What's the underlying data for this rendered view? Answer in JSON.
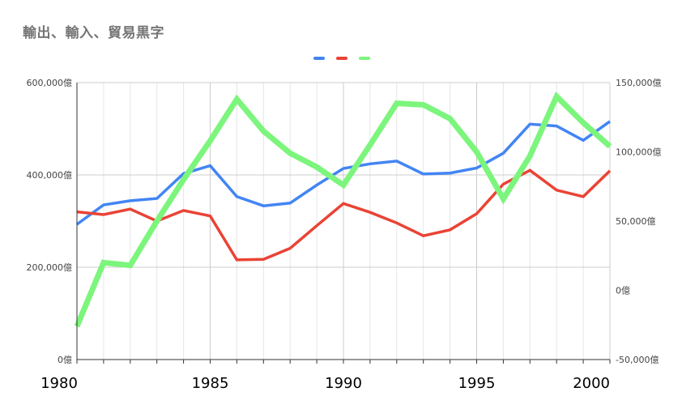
{
  "chart_data": {
    "type": "line",
    "title": "輸出、輸入、貿易黒字",
    "xlabel": "",
    "ylabel": "",
    "x": [
      1980,
      1981,
      1982,
      1983,
      1984,
      1985,
      1986,
      1987,
      1988,
      1989,
      1990,
      1991,
      1992,
      1993,
      1994,
      1995,
      1996,
      1997,
      1998,
      1999,
      2000
    ],
    "x_ticks": [
      "1980",
      "1985",
      "1990",
      "1995",
      "2000"
    ],
    "xlim": [
      1980,
      2000
    ],
    "ylim_left": [
      0,
      600000
    ],
    "ylim_right": [
      -50000,
      150000
    ],
    "y_ticks_left": [
      "0億",
      "200,000億",
      "400,000億",
      "600,000億"
    ],
    "y_ticks_right": [
      "-50,000億",
      "0億",
      "50,000億",
      "100,000億",
      "150,000億"
    ],
    "grid": true,
    "legend_position": "top",
    "series": [
      {
        "axis": "left",
        "color": "#4285F4",
        "values": [
          293000,
          335000,
          344000,
          349000,
          403000,
          420000,
          353000,
          333000,
          339000,
          378000,
          414000,
          424000,
          430000,
          402000,
          404000,
          415000,
          447000,
          510000,
          506000,
          475000,
          516000
        ]
      },
      {
        "axis": "left",
        "color": "#EA4335",
        "values": [
          320000,
          314000,
          326000,
          300000,
          323000,
          311000,
          216000,
          217000,
          241000,
          290000,
          338000,
          319000,
          296000,
          268000,
          281000,
          316000,
          380000,
          410000,
          367000,
          353000,
          409000
        ]
      },
      {
        "axis": "right",
        "color": "#7CF57C",
        "values": [
          -26000,
          20000,
          18000,
          50000,
          80000,
          108000,
          138000,
          115000,
          99000,
          89000,
          76000,
          105000,
          135000,
          134000,
          124000,
          100000,
          66000,
          97000,
          140000,
          121000,
          104000
        ]
      }
    ]
  }
}
